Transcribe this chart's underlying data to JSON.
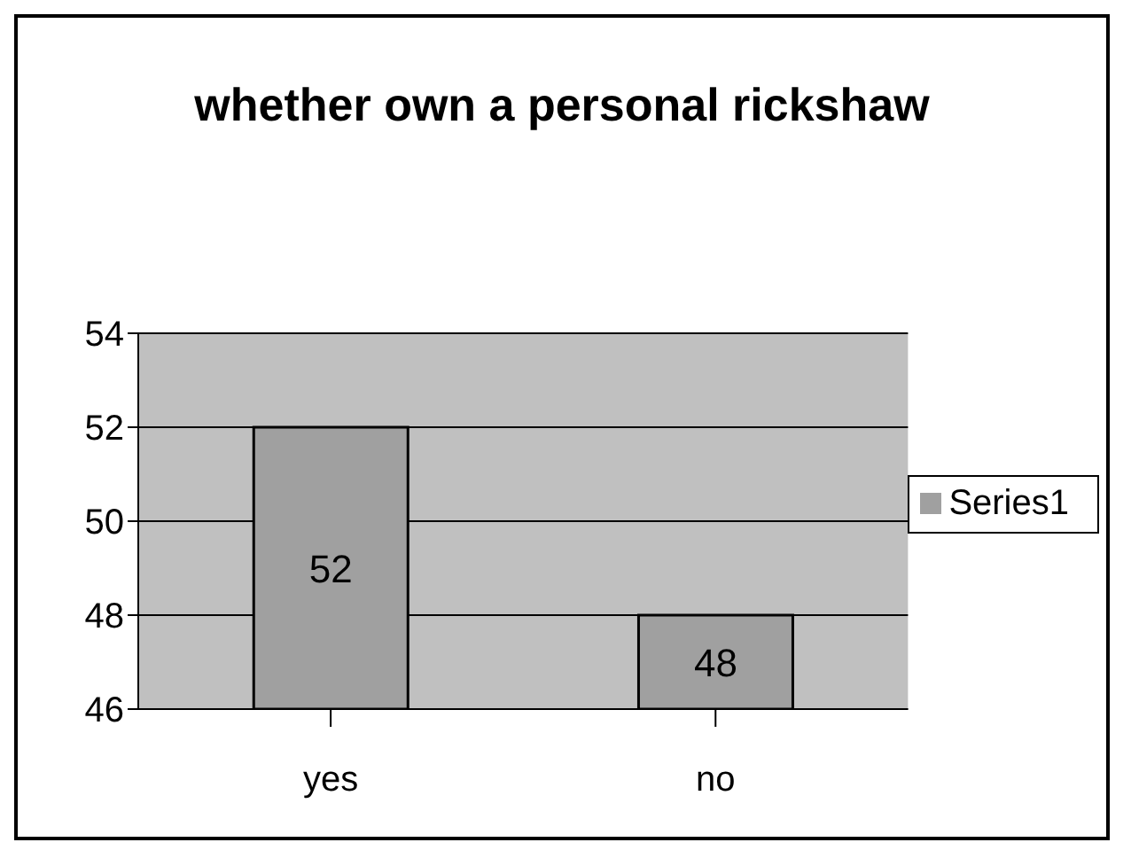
{
  "chart_data": {
    "type": "bar",
    "title": "whether own a personal rickshaw",
    "categories": [
      "yes",
      "no"
    ],
    "series": [
      {
        "name": "Series1",
        "color": "#a0a0a0",
        "values": [
          52,
          48
        ]
      }
    ],
    "ylim": [
      46,
      54
    ],
    "yticks": [
      46,
      48,
      50,
      52,
      54
    ],
    "grid": "y",
    "legend": "right",
    "data_labels": true
  }
}
